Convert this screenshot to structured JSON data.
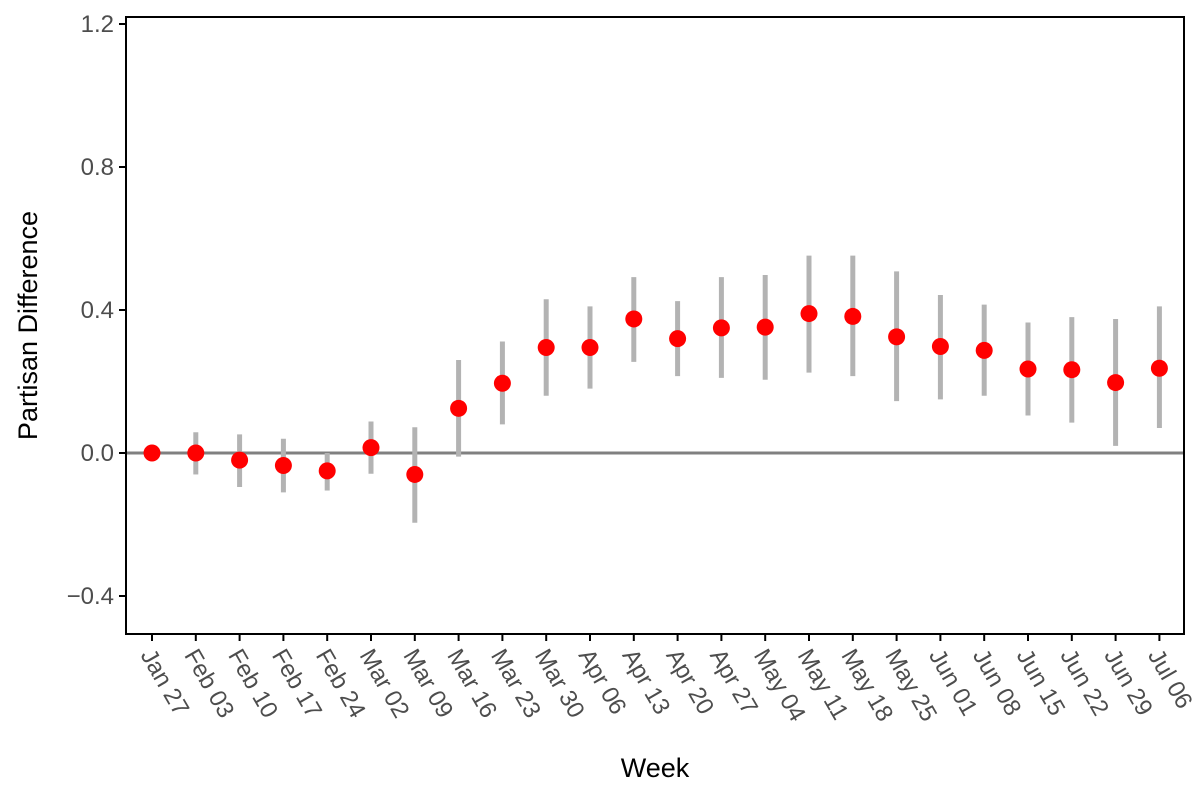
{
  "chart_data": {
    "type": "scatter",
    "subtype": "point-with-error-bars",
    "title": "",
    "xlabel": "Week",
    "ylabel": "Partisan Difference",
    "ylim": [
      -0.5,
      1.22
    ],
    "yticks": [
      -0.4,
      0.0,
      0.4,
      0.8,
      1.2
    ],
    "ytick_labels": [
      "−0.4",
      "0.0",
      "0.4",
      "0.8",
      "1.2"
    ],
    "reference_line_y": 0.0,
    "grid": false,
    "legend": "none",
    "categories": [
      "Jan 27",
      "Feb 03",
      "Feb 10",
      "Feb 17",
      "Feb 24",
      "Mar 02",
      "Mar 09",
      "Mar 16",
      "Mar 23",
      "Mar 30",
      "Apr 06",
      "Apr 13",
      "Apr 20",
      "Apr 27",
      "May 04",
      "May 11",
      "May 18",
      "May 25",
      "Jun 01",
      "Jun 08",
      "Jun 15",
      "Jun 22",
      "Jun 29",
      "Jul 06"
    ],
    "values": [
      0.0,
      0.0,
      -0.02,
      -0.035,
      -0.05,
      0.015,
      -0.06,
      0.125,
      0.195,
      0.295,
      0.295,
      0.375,
      0.32,
      0.35,
      0.352,
      0.39,
      0.382,
      0.325,
      0.298,
      0.287,
      0.235,
      0.233,
      0.197,
      0.237
    ],
    "lower": [
      0.0,
      -0.06,
      -0.095,
      -0.11,
      -0.105,
      -0.058,
      -0.195,
      -0.01,
      0.08,
      0.16,
      0.18,
      0.255,
      0.215,
      0.21,
      0.205,
      0.225,
      0.215,
      0.145,
      0.15,
      0.16,
      0.105,
      0.085,
      0.02,
      0.07
    ],
    "upper": [
      0.0,
      0.058,
      0.052,
      0.04,
      0.0,
      0.088,
      0.072,
      0.26,
      0.312,
      0.43,
      0.41,
      0.492,
      0.425,
      0.492,
      0.498,
      0.552,
      0.552,
      0.508,
      0.442,
      0.415,
      0.365,
      0.38,
      0.375,
      0.41
    ],
    "colors": {
      "point": "#ff0000",
      "error_bar": "#b3b3b3",
      "reference_line": "#808080",
      "axis": "#000000",
      "tick_label": "#4d4d4d"
    }
  }
}
